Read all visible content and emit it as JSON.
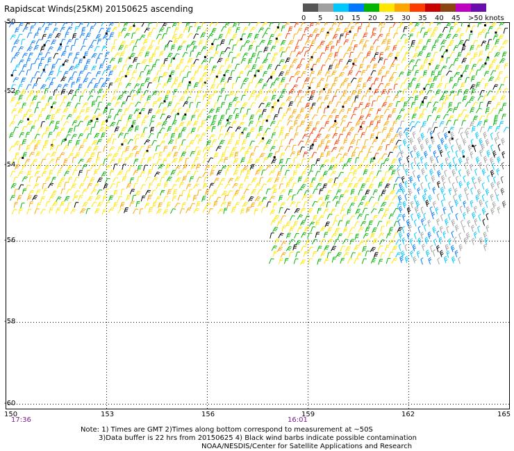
{
  "title": "Rapidscat Winds(25KM) 20150625 ascending",
  "legend": {
    "ticks": [
      "0",
      "5",
      "10",
      "15",
      "20",
      "25",
      "30",
      "35",
      "40",
      "45",
      ">50 knots"
    ],
    "colors": [
      "#555555",
      "#a0a0a0",
      "#00c8ff",
      "#0078ff",
      "#00b400",
      "#ffe600",
      "#ffa500",
      "#ff3c00",
      "#c80000",
      "#8b4513",
      "#c000c0",
      "#6a0dad"
    ]
  },
  "axes": {
    "lon_ticks": [
      "150",
      "153",
      "156",
      "159",
      "162",
      "165"
    ],
    "lat_ticks": [
      "-50",
      "-52",
      "-54",
      "-56",
      "-58",
      "-60"
    ]
  },
  "times": [
    "17:36",
    "16:01"
  ],
  "notes": [
    "Note: 1) Times are GMT 2)Times along bottom correspond to measurement at ~50S",
    "3)Data buffer is 22 hrs from 20150625 4) Black wind barbs indicate possible contamination",
    "NOAA/NESDIS/Center for Satellite Applications and Research"
  ]
}
